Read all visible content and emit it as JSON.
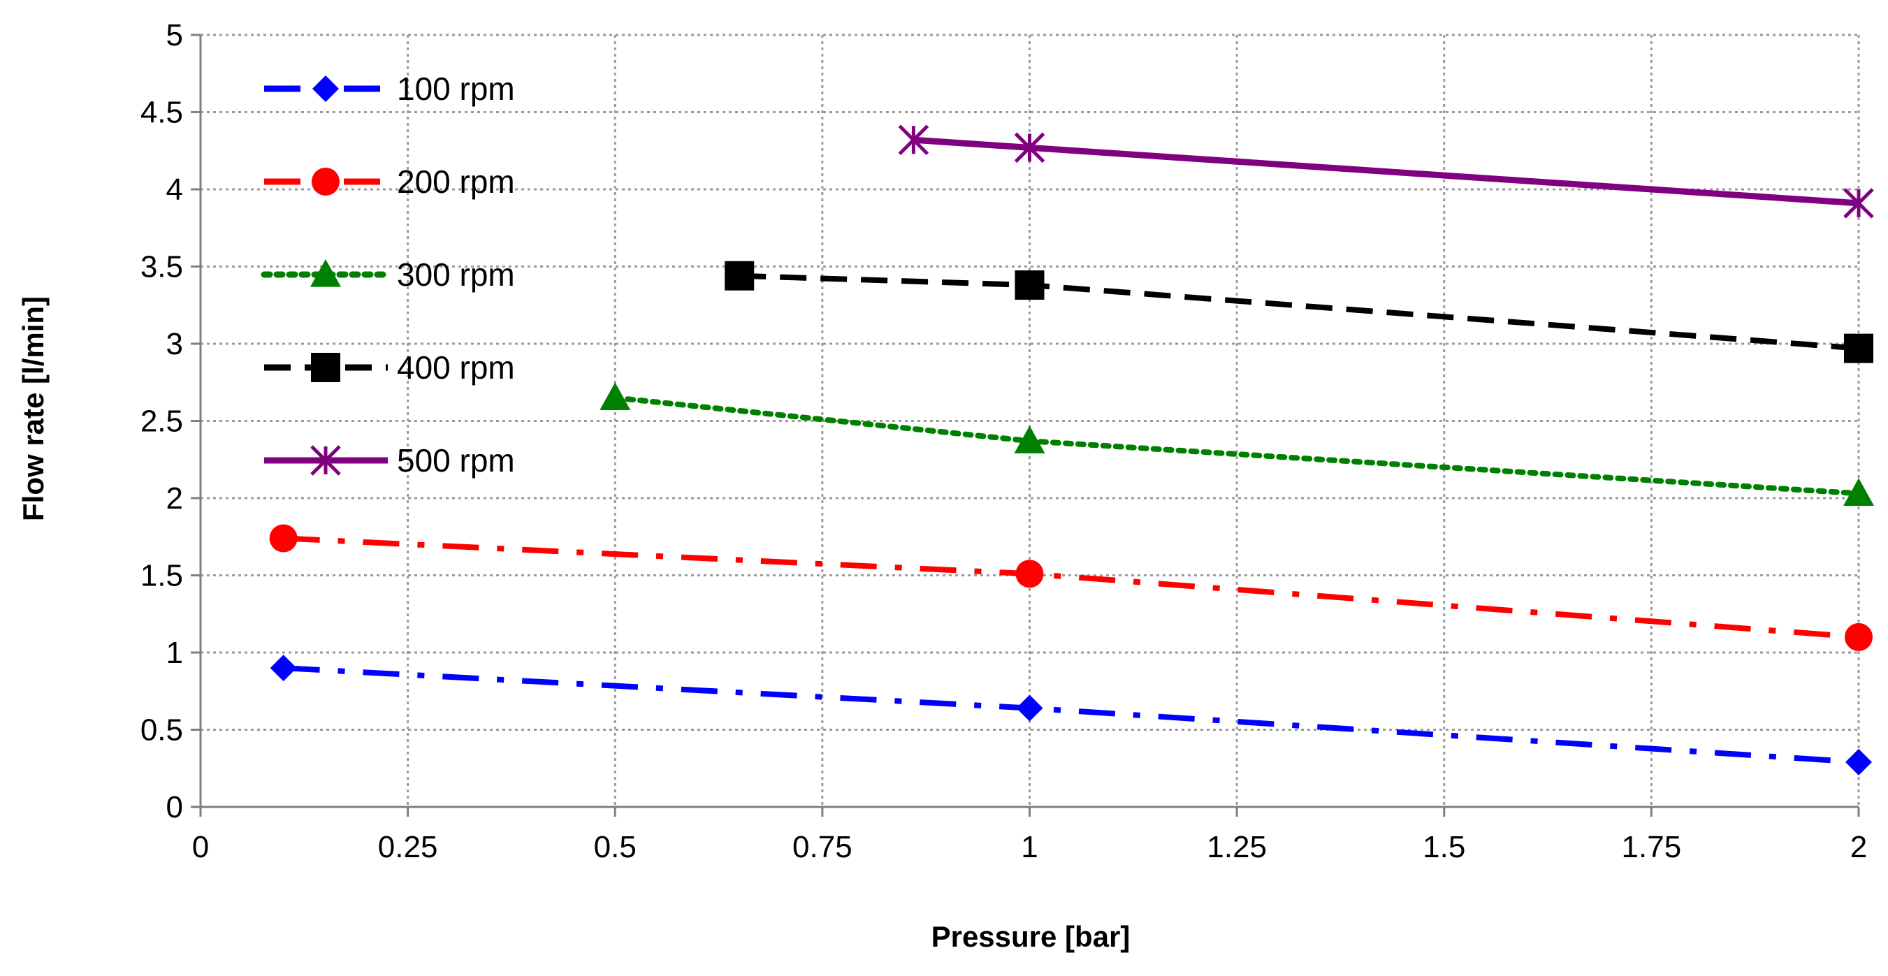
{
  "chart_data": {
    "type": "line",
    "title": "",
    "xlabel": "Pressure [bar]",
    "ylabel": "Flow rate  [l/min]",
    "xlim": [
      0,
      2
    ],
    "ylim": [
      0,
      5
    ],
    "grid": true,
    "legend_position": "top-left",
    "x_ticks": [
      0,
      0.25,
      0.5,
      0.75,
      1,
      1.25,
      1.5,
      1.75,
      2
    ],
    "x_tick_labels": [
      "0",
      "0.25",
      "0.5",
      "0.75",
      "1",
      "1.25",
      "1.5",
      "1.75",
      "2"
    ],
    "y_ticks": [
      0,
      0.5,
      1,
      1.5,
      2,
      2.5,
      3,
      3.5,
      4,
      4.5,
      5
    ],
    "y_tick_labels": [
      "0",
      "0.5",
      "1",
      "1.5",
      "2",
      "2.5",
      "3",
      "3.5",
      "4",
      "4.5",
      "5"
    ],
    "series": [
      {
        "name": "100 rpm",
        "color": "#0000ff",
        "marker": "diamond",
        "dash": "longdashdot",
        "x": [
          0.1,
          1,
          2
        ],
        "y": [
          0.9,
          0.64,
          0.29
        ]
      },
      {
        "name": "200 rpm",
        "color": "#ff0000",
        "marker": "circle",
        "dash": "longdashdot",
        "x": [
          0.1,
          1,
          2
        ],
        "y": [
          1.74,
          1.51,
          1.1
        ]
      },
      {
        "name": "300 rpm",
        "color": "#008000",
        "marker": "triangle",
        "dash": "dot",
        "x": [
          0.5,
          1,
          2
        ],
        "y": [
          2.65,
          2.37,
          2.03
        ]
      },
      {
        "name": "400 rpm",
        "color": "#000000",
        "marker": "square",
        "dash": "dash",
        "x": [
          0.65,
          1,
          2
        ],
        "y": [
          3.44,
          3.38,
          2.97
        ]
      },
      {
        "name": "500 rpm",
        "color": "#800080",
        "marker": "star",
        "dash": "solid",
        "x": [
          0.86,
          1,
          2
        ],
        "y": [
          4.32,
          4.27,
          3.91
        ]
      }
    ]
  }
}
